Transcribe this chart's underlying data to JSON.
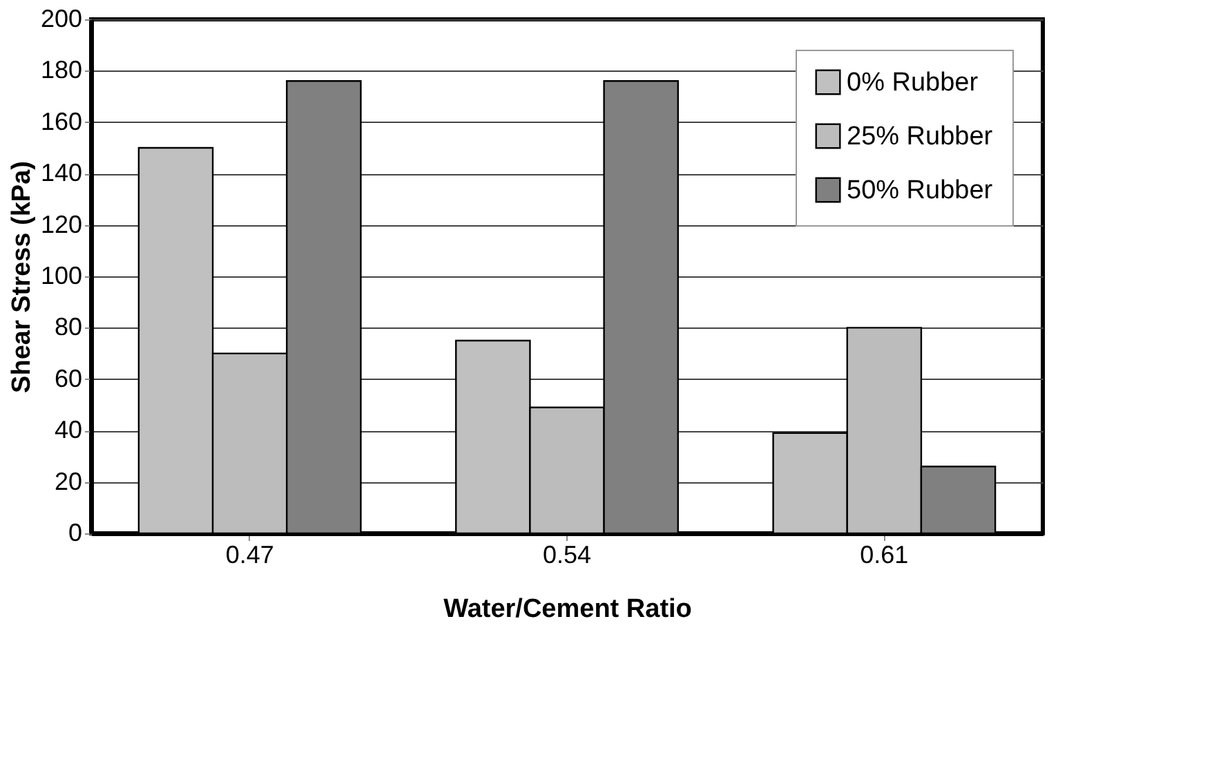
{
  "chart_data": {
    "type": "bar",
    "xlabel": "Water/Cement Ratio",
    "ylabel": "Shear Stress (kPa)",
    "categories": [
      "0.47",
      "0.54",
      "0.61"
    ],
    "series": [
      {
        "name": "0% Rubber",
        "color": "#c0c0c0",
        "values": [
          150,
          75,
          39
        ]
      },
      {
        "name": "25% Rubber",
        "color": "#bcbcbc",
        "values": [
          70,
          49,
          80
        ]
      },
      {
        "name": "50% Rubber",
        "color": "#808080",
        "values": [
          176,
          176,
          26
        ]
      }
    ],
    "ylim": [
      0,
      200
    ],
    "yticks": [
      0,
      20,
      40,
      60,
      80,
      100,
      120,
      140,
      160,
      180,
      200
    ],
    "grid": "y",
    "legend": "top right"
  }
}
